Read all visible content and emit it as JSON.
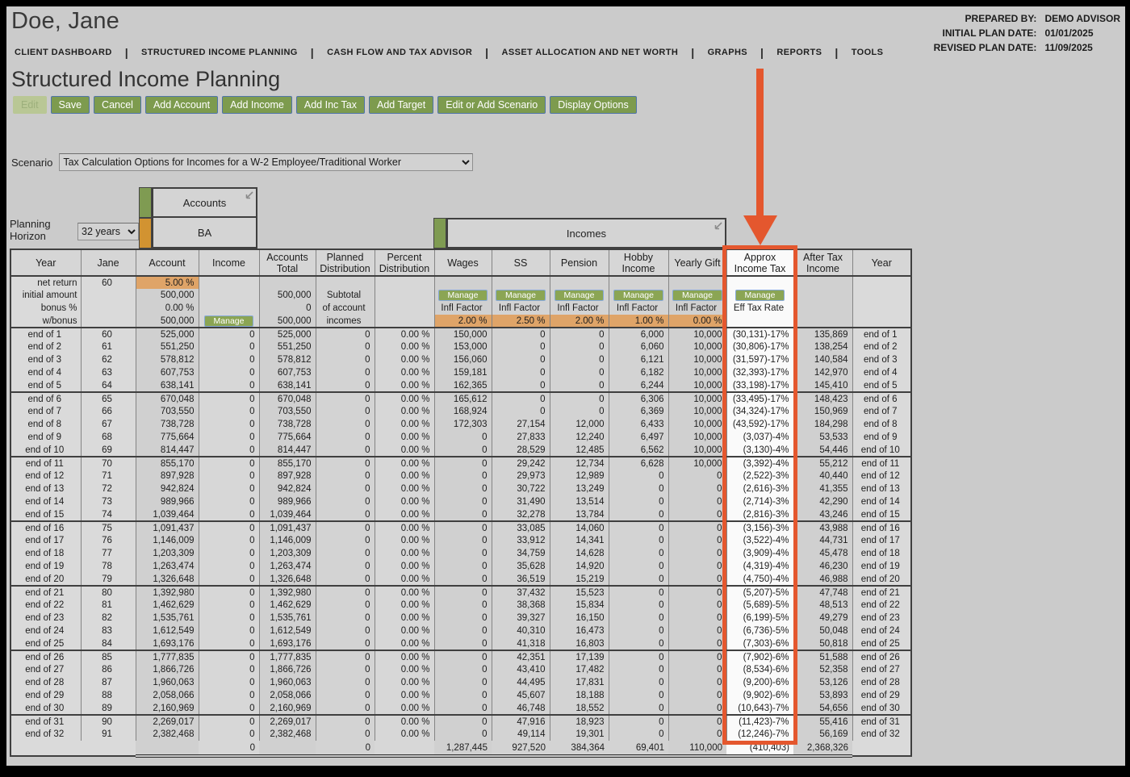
{
  "header": {
    "client_name": "Doe, Jane",
    "prepared_by_label": "PREPARED BY:",
    "prepared_by": "DEMO ADVISOR",
    "initial_plan_date_label": "INITIAL PLAN DATE:",
    "initial_plan_date": "01/01/2025",
    "revised_plan_date_label": "REVISED PLAN DATE:",
    "revised_plan_date": "11/09/2025"
  },
  "nav": {
    "items": [
      {
        "label": "CLIENT DASHBOARD"
      },
      {
        "label": "STRUCTURED INCOME PLANNING"
      },
      {
        "label": "CASH FLOW AND TAX ADVISOR"
      },
      {
        "label": "ASSET ALLOCATION AND NET WORTH"
      },
      {
        "label": "GRAPHS"
      },
      {
        "label": "REPORTS"
      },
      {
        "label": "TOOLS"
      }
    ]
  },
  "page_title": "Structured Income Planning",
  "toolbar": {
    "buttons": [
      {
        "label": "Edit",
        "disabled": true
      },
      {
        "label": "Save",
        "disabled": false
      },
      {
        "label": "Cancel",
        "disabled": false
      },
      {
        "label": "Add Account",
        "disabled": false
      },
      {
        "label": "Add Income",
        "disabled": false
      },
      {
        "label": "Add Inc Tax",
        "disabled": false
      },
      {
        "label": "Add Target",
        "disabled": false
      },
      {
        "label": "Edit or Add Scenario",
        "disabled": false
      },
      {
        "label": "Display Options",
        "disabled": false
      }
    ]
  },
  "scenario": {
    "label": "Scenario",
    "value": "Tax Calculation Options for Incomes for a W-2 Employee/Traditional Worker"
  },
  "planning_horizon": {
    "label": "Planning Horizon",
    "value": "32 years"
  },
  "groups": {
    "accounts_label": "Accounts",
    "account_name": "BA",
    "incomes_label": "Incomes",
    "collapse_icon": "collapse-diagonal-icon"
  },
  "colors": {
    "annotation_orange": "#e4572e",
    "button_green": "#7d9b4e",
    "strip_green": "#7f9b52",
    "strip_orange": "#d29331",
    "cell_orange": "#dfa468"
  },
  "table": {
    "columns": [
      "Year",
      "Jane",
      "Account",
      "Income",
      "Accounts Total",
      "Planned Distribution",
      "Percent Distribution",
      "Wages",
      "SS",
      "Pension",
      "Hobby Income",
      "Yearly Gift",
      "Approx Income Tax",
      "After Tax Income",
      "Year"
    ],
    "subheader": {
      "row_labels": [
        "net return",
        "initial amount",
        "bonus %",
        "w/bonus"
      ],
      "net_return": {
        "jane": "60",
        "account": "5.00 %"
      },
      "initial_amount": {
        "account": "500,000",
        "accounts_total": "500,000",
        "planned": "Subtotal"
      },
      "bonus_pct": {
        "account": "0.00 %",
        "accounts_total": "0",
        "planned": "of account"
      },
      "w_bonus": {
        "account": "500,000",
        "accounts_total": "500,000",
        "planned": "incomes"
      },
      "manage_label": "Manage",
      "infl_factor_label": "Infl Factor",
      "eff_tax_rate_label": "Eff Tax Rate",
      "infl_values": [
        "2.00 %",
        "2.50 %",
        "2.00 %",
        "1.00 %",
        "0.00 %"
      ]
    },
    "rows": [
      [
        "end of 1",
        "60",
        "525,000",
        "0",
        "525,000",
        "0",
        "0.00 %",
        "150,000",
        "0",
        "0",
        "6,000",
        "10,000",
        "(30,131)-17%",
        "135,869",
        "end of 1"
      ],
      [
        "end of 2",
        "61",
        "551,250",
        "0",
        "551,250",
        "0",
        "0.00 %",
        "153,000",
        "0",
        "0",
        "6,060",
        "10,000",
        "(30,806)-17%",
        "138,254",
        "end of 2"
      ],
      [
        "end of 3",
        "62",
        "578,812",
        "0",
        "578,812",
        "0",
        "0.00 %",
        "156,060",
        "0",
        "0",
        "6,121",
        "10,000",
        "(31,597)-17%",
        "140,584",
        "end of 3"
      ],
      [
        "end of 4",
        "63",
        "607,753",
        "0",
        "607,753",
        "0",
        "0.00 %",
        "159,181",
        "0",
        "0",
        "6,182",
        "10,000",
        "(32,393)-17%",
        "142,970",
        "end of 4"
      ],
      [
        "end of 5",
        "64",
        "638,141",
        "0",
        "638,141",
        "0",
        "0.00 %",
        "162,365",
        "0",
        "0",
        "6,244",
        "10,000",
        "(33,198)-17%",
        "145,410",
        "end of 5"
      ],
      [
        "end of 6",
        "65",
        "670,048",
        "0",
        "670,048",
        "0",
        "0.00 %",
        "165,612",
        "0",
        "0",
        "6,306",
        "10,000",
        "(33,495)-17%",
        "148,423",
        "end of 6"
      ],
      [
        "end of 7",
        "66",
        "703,550",
        "0",
        "703,550",
        "0",
        "0.00 %",
        "168,924",
        "0",
        "0",
        "6,369",
        "10,000",
        "(34,324)-17%",
        "150,969",
        "end of 7"
      ],
      [
        "end of 8",
        "67",
        "738,728",
        "0",
        "738,728",
        "0",
        "0.00 %",
        "172,303",
        "27,154",
        "12,000",
        "6,433",
        "10,000",
        "(43,592)-17%",
        "184,298",
        "end of 8"
      ],
      [
        "end of 9",
        "68",
        "775,664",
        "0",
        "775,664",
        "0",
        "0.00 %",
        "0",
        "27,833",
        "12,240",
        "6,497",
        "10,000",
        "(3,037)-4%",
        "53,533",
        "end of 9"
      ],
      [
        "end of 10",
        "69",
        "814,447",
        "0",
        "814,447",
        "0",
        "0.00 %",
        "0",
        "28,529",
        "12,485",
        "6,562",
        "10,000",
        "(3,130)-4%",
        "54,446",
        "end of 10"
      ],
      [
        "end of 11",
        "70",
        "855,170",
        "0",
        "855,170",
        "0",
        "0.00 %",
        "0",
        "29,242",
        "12,734",
        "6,628",
        "10,000",
        "(3,392)-4%",
        "55,212",
        "end of 11"
      ],
      [
        "end of 12",
        "71",
        "897,928",
        "0",
        "897,928",
        "0",
        "0.00 %",
        "0",
        "29,973",
        "12,989",
        "0",
        "0",
        "(2,522)-3%",
        "40,440",
        "end of 12"
      ],
      [
        "end of 13",
        "72",
        "942,824",
        "0",
        "942,824",
        "0",
        "0.00 %",
        "0",
        "30,722",
        "13,249",
        "0",
        "0",
        "(2,616)-3%",
        "41,355",
        "end of 13"
      ],
      [
        "end of 14",
        "73",
        "989,966",
        "0",
        "989,966",
        "0",
        "0.00 %",
        "0",
        "31,490",
        "13,514",
        "0",
        "0",
        "(2,714)-3%",
        "42,290",
        "end of 14"
      ],
      [
        "end of 15",
        "74",
        "1,039,464",
        "0",
        "1,039,464",
        "0",
        "0.00 %",
        "0",
        "32,278",
        "13,784",
        "0",
        "0",
        "(2,816)-3%",
        "43,246",
        "end of 15"
      ],
      [
        "end of 16",
        "75",
        "1,091,437",
        "0",
        "1,091,437",
        "0",
        "0.00 %",
        "0",
        "33,085",
        "14,060",
        "0",
        "0",
        "(3,156)-3%",
        "43,988",
        "end of 16"
      ],
      [
        "end of 17",
        "76",
        "1,146,009",
        "0",
        "1,146,009",
        "0",
        "0.00 %",
        "0",
        "33,912",
        "14,341",
        "0",
        "0",
        "(3,522)-4%",
        "44,731",
        "end of 17"
      ],
      [
        "end of 18",
        "77",
        "1,203,309",
        "0",
        "1,203,309",
        "0",
        "0.00 %",
        "0",
        "34,759",
        "14,628",
        "0",
        "0",
        "(3,909)-4%",
        "45,478",
        "end of 18"
      ],
      [
        "end of 19",
        "78",
        "1,263,474",
        "0",
        "1,263,474",
        "0",
        "0.00 %",
        "0",
        "35,628",
        "14,920",
        "0",
        "0",
        "(4,319)-4%",
        "46,230",
        "end of 19"
      ],
      [
        "end of 20",
        "79",
        "1,326,648",
        "0",
        "1,326,648",
        "0",
        "0.00 %",
        "0",
        "36,519",
        "15,219",
        "0",
        "0",
        "(4,750)-4%",
        "46,988",
        "end of 20"
      ],
      [
        "end of 21",
        "80",
        "1,392,980",
        "0",
        "1,392,980",
        "0",
        "0.00 %",
        "0",
        "37,432",
        "15,523",
        "0",
        "0",
        "(5,207)-5%",
        "47,748",
        "end of 21"
      ],
      [
        "end of 22",
        "81",
        "1,462,629",
        "0",
        "1,462,629",
        "0",
        "0.00 %",
        "0",
        "38,368",
        "15,834",
        "0",
        "0",
        "(5,689)-5%",
        "48,513",
        "end of 22"
      ],
      [
        "end of 23",
        "82",
        "1,535,761",
        "0",
        "1,535,761",
        "0",
        "0.00 %",
        "0",
        "39,327",
        "16,150",
        "0",
        "0",
        "(6,199)-5%",
        "49,279",
        "end of 23"
      ],
      [
        "end of 24",
        "83",
        "1,612,549",
        "0",
        "1,612,549",
        "0",
        "0.00 %",
        "0",
        "40,310",
        "16,473",
        "0",
        "0",
        "(6,736)-5%",
        "50,048",
        "end of 24"
      ],
      [
        "end of 25",
        "84",
        "1,693,176",
        "0",
        "1,693,176",
        "0",
        "0.00 %",
        "0",
        "41,318",
        "16,803",
        "0",
        "0",
        "(7,303)-6%",
        "50,818",
        "end of 25"
      ],
      [
        "end of 26",
        "85",
        "1,777,835",
        "0",
        "1,777,835",
        "0",
        "0.00 %",
        "0",
        "42,351",
        "17,139",
        "0",
        "0",
        "(7,902)-6%",
        "51,588",
        "end of 26"
      ],
      [
        "end of 27",
        "86",
        "1,866,726",
        "0",
        "1,866,726",
        "0",
        "0.00 %",
        "0",
        "43,410",
        "17,482",
        "0",
        "0",
        "(8,534)-6%",
        "52,358",
        "end of 27"
      ],
      [
        "end of 28",
        "87",
        "1,960,063",
        "0",
        "1,960,063",
        "0",
        "0.00 %",
        "0",
        "44,495",
        "17,831",
        "0",
        "0",
        "(9,200)-6%",
        "53,126",
        "end of 28"
      ],
      [
        "end of 29",
        "88",
        "2,058,066",
        "0",
        "2,058,066",
        "0",
        "0.00 %",
        "0",
        "45,607",
        "18,188",
        "0",
        "0",
        "(9,902)-6%",
        "53,893",
        "end of 29"
      ],
      [
        "end of 30",
        "89",
        "2,160,969",
        "0",
        "2,160,969",
        "0",
        "0.00 %",
        "0",
        "46,748",
        "18,552",
        "0",
        "0",
        "(10,643)-7%",
        "54,656",
        "end of 30"
      ],
      [
        "end of 31",
        "90",
        "2,269,017",
        "0",
        "2,269,017",
        "0",
        "0.00 %",
        "0",
        "47,916",
        "18,923",
        "0",
        "0",
        "(11,423)-7%",
        "55,416",
        "end of 31"
      ],
      [
        "end of 32",
        "91",
        "2,382,468",
        "0",
        "2,382,468",
        "0",
        "0.00 %",
        "0",
        "49,114",
        "19,301",
        "0",
        "0",
        "(12,246)-7%",
        "56,169",
        "end of 32"
      ]
    ],
    "totals": {
      "income": "0",
      "planned_distribution": "0",
      "wages": "1,287,445",
      "ss": "927,520",
      "pension": "384,364",
      "hobby_income": "69,401",
      "yearly_gift": "110,000",
      "approx_income_tax": "(410,403)",
      "after_tax_income": "2,368,326"
    }
  }
}
